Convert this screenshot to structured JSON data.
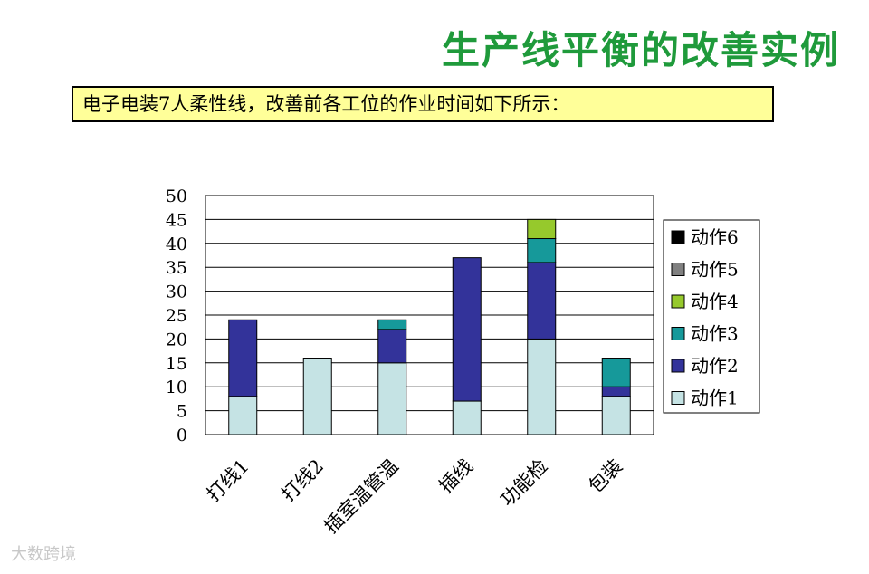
{
  "header": {
    "title": "生产线平衡的改善实例",
    "subtitle": "电子电装7人柔性线，改善前各工位的作业时间如下所示："
  },
  "watermark": "大数跨境",
  "colors": {
    "title": "#1f9a3b",
    "subtitle_bg": "#ffff99",
    "action1": "#c5e3e4",
    "action2": "#33339a",
    "action3": "#16999a",
    "action4": "#96c92c",
    "action5": "#808080",
    "action6": "#000000"
  },
  "chart_data": {
    "type": "bar",
    "stacked": true,
    "categories": [
      "打线1",
      "打线2",
      "插室温管温",
      "插线",
      "功能检",
      "包装"
    ],
    "series": [
      {
        "name": "动作1",
        "color": "#c5e3e4",
        "values": [
          8,
          16,
          15,
          7,
          20,
          8
        ]
      },
      {
        "name": "动作2",
        "color": "#33339a",
        "values": [
          16,
          0,
          7,
          30,
          16,
          2
        ]
      },
      {
        "name": "动作3",
        "color": "#16999a",
        "values": [
          0,
          0,
          2,
          0,
          5,
          6
        ]
      },
      {
        "name": "动作4",
        "color": "#96c92c",
        "values": [
          0,
          0,
          0,
          0,
          4,
          0
        ]
      },
      {
        "name": "动作5",
        "color": "#808080",
        "values": [
          0,
          0,
          0,
          0,
          0,
          0
        ]
      },
      {
        "name": "动作6",
        "color": "#000000",
        "values": [
          0,
          0,
          0,
          0,
          0,
          0
        ]
      }
    ],
    "ylim": [
      0,
      50
    ],
    "yticks": [
      "0",
      "5",
      "10",
      "15",
      "20",
      "25",
      "30",
      "35",
      "40",
      "45",
      "50"
    ],
    "grid": true,
    "legend_position": "right"
  }
}
